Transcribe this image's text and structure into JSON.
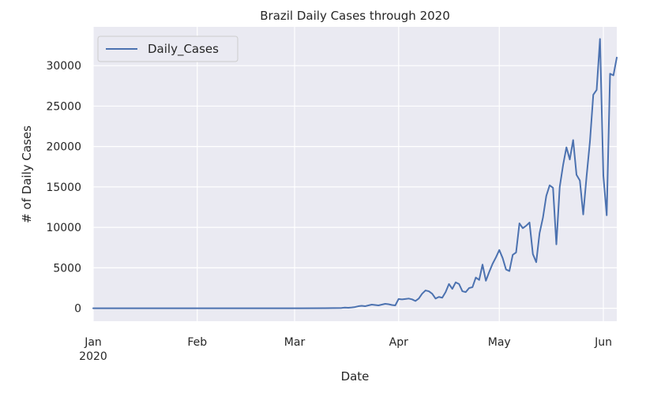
{
  "chart_data": {
    "type": "line",
    "title": "Brazil Daily Cases through 2020",
    "xlabel": "Date",
    "ylabel": "# of Daily Cases",
    "x_ticks": [
      {
        "date": "2020-01-01",
        "label": "Jan",
        "sublabel": "2020"
      },
      {
        "date": "2020-02-01",
        "label": "Feb",
        "sublabel": ""
      },
      {
        "date": "2020-03-01",
        "label": "Mar",
        "sublabel": ""
      },
      {
        "date": "2020-04-01",
        "label": "Apr",
        "sublabel": ""
      },
      {
        "date": "2020-05-01",
        "label": "May",
        "sublabel": ""
      },
      {
        "date": "2020-06-01",
        "label": "Jun",
        "sublabel": ""
      }
    ],
    "y_ticks": [
      0,
      5000,
      10000,
      15000,
      20000,
      25000,
      30000
    ],
    "xlim": [
      "2020-01-01",
      "2020-06-05"
    ],
    "ylim": [
      -1600,
      34800
    ],
    "grid": true,
    "legend": "top-left",
    "series": [
      {
        "name": "Daily_Cases",
        "color": "#4c72b0",
        "points": [
          [
            "2020-01-01",
            0
          ],
          [
            "2020-02-26",
            0
          ],
          [
            "2020-03-10",
            5
          ],
          [
            "2020-03-15",
            40
          ],
          [
            "2020-03-16",
            80
          ],
          [
            "2020-03-17",
            60
          ],
          [
            "2020-03-18",
            100
          ],
          [
            "2020-03-19",
            150
          ],
          [
            "2020-03-20",
            250
          ],
          [
            "2020-03-21",
            300
          ],
          [
            "2020-03-22",
            250
          ],
          [
            "2020-03-23",
            350
          ],
          [
            "2020-03-24",
            450
          ],
          [
            "2020-03-25",
            400
          ],
          [
            "2020-03-26",
            350
          ],
          [
            "2020-03-27",
            450
          ],
          [
            "2020-03-28",
            550
          ],
          [
            "2020-03-29",
            500
          ],
          [
            "2020-03-30",
            400
          ],
          [
            "2020-03-31",
            350
          ],
          [
            "2020-04-01",
            1150
          ],
          [
            "2020-04-02",
            1100
          ],
          [
            "2020-04-03",
            1150
          ],
          [
            "2020-04-04",
            1200
          ],
          [
            "2020-04-05",
            1100
          ],
          [
            "2020-04-06",
            900
          ],
          [
            "2020-04-07",
            1200
          ],
          [
            "2020-04-08",
            1800
          ],
          [
            "2020-04-09",
            2200
          ],
          [
            "2020-04-10",
            2100
          ],
          [
            "2020-04-11",
            1800
          ],
          [
            "2020-04-12",
            1200
          ],
          [
            "2020-04-13",
            1400
          ],
          [
            "2020-04-14",
            1300
          ],
          [
            "2020-04-15",
            2000
          ],
          [
            "2020-04-16",
            3000
          ],
          [
            "2020-04-17",
            2400
          ],
          [
            "2020-04-18",
            3200
          ],
          [
            "2020-04-19",
            3000
          ],
          [
            "2020-04-20",
            2100
          ],
          [
            "2020-04-21",
            2000
          ],
          [
            "2020-04-22",
            2500
          ],
          [
            "2020-04-23",
            2600
          ],
          [
            "2020-04-24",
            3800
          ],
          [
            "2020-04-25",
            3500
          ],
          [
            "2020-04-26",
            5400
          ],
          [
            "2020-04-27",
            3400
          ],
          [
            "2020-04-28",
            4500
          ],
          [
            "2020-04-29",
            5500
          ],
          [
            "2020-04-30",
            6300
          ],
          [
            "2020-05-01",
            7200
          ],
          [
            "2020-05-02",
            6200
          ],
          [
            "2020-05-03",
            4800
          ],
          [
            "2020-05-04",
            4600
          ],
          [
            "2020-05-05",
            6600
          ],
          [
            "2020-05-06",
            6900
          ],
          [
            "2020-05-07",
            10500
          ],
          [
            "2020-05-08",
            9900
          ],
          [
            "2020-05-09",
            10200
          ],
          [
            "2020-05-10",
            10600
          ],
          [
            "2020-05-11",
            6700
          ],
          [
            "2020-05-12",
            5700
          ],
          [
            "2020-05-13",
            9300
          ],
          [
            "2020-05-14",
            11200
          ],
          [
            "2020-05-15",
            13900
          ],
          [
            "2020-05-16",
            15200
          ],
          [
            "2020-05-17",
            14900
          ],
          [
            "2020-05-18",
            7900
          ],
          [
            "2020-05-19",
            15000
          ],
          [
            "2020-05-20",
            17700
          ],
          [
            "2020-05-21",
            19900
          ],
          [
            "2020-05-22",
            18400
          ],
          [
            "2020-05-23",
            20800
          ],
          [
            "2020-05-24",
            16500
          ],
          [
            "2020-05-25",
            15800
          ],
          [
            "2020-05-26",
            11600
          ],
          [
            "2020-05-27",
            16300
          ],
          [
            "2020-05-28",
            20600
          ],
          [
            "2020-05-29",
            26400
          ],
          [
            "2020-05-30",
            27000
          ],
          [
            "2020-05-31",
            33300
          ],
          [
            "2020-06-01",
            16400
          ],
          [
            "2020-06-02",
            11500
          ],
          [
            "2020-06-03",
            29000
          ],
          [
            "2020-06-04",
            28800
          ],
          [
            "2020-06-05",
            31000
          ]
        ]
      }
    ]
  }
}
